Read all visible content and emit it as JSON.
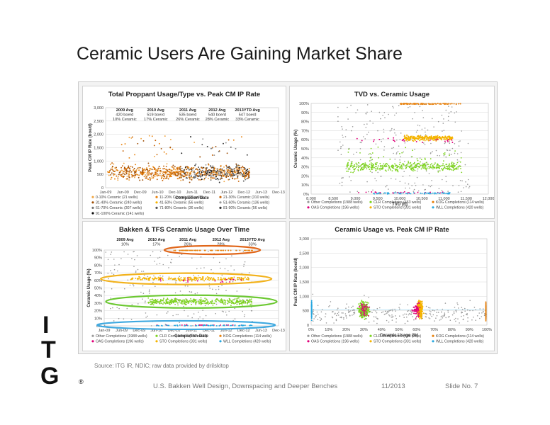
{
  "slide": {
    "title": "Ceramic Users Are Gaining Market Share",
    "source": "Source:  ITG IR, NDIC; raw data provided by drilskitop",
    "footer": "U.S. Bakken Well Design, Downspacing and Deeper Benches",
    "date": "11/2013",
    "slide_no": "Slide No. 7",
    "logo_letters": [
      "I",
      "T",
      "G"
    ],
    "logo_mark": "®"
  },
  "colors": {
    "orange": "#e8820e",
    "amber": "#f5b400",
    "green": "#7ed321",
    "magenta": "#e0007a",
    "cyan": "#29a8e0",
    "gray": "#9a9a9a",
    "dark_gray": "#555555",
    "black": "#111111",
    "ring_orange": "#e0661a",
    "ring_amber": "#f2b21c",
    "ring_green": "#6cc832",
    "ring_blue": "#3fa9e0"
  },
  "chart_data": [
    {
      "type": "scatter",
      "title": "Total Proppant Usage/Type  vs. Peak CM IP Rate",
      "xlabel": "Completion Date",
      "ylabel": "Peak CM IP Rate (boe/d)",
      "x_ticks": [
        "Jan-09",
        "Jun-09",
        "Dec-09",
        "Jun-10",
        "Dec-10",
        "Jun-11",
        "Dec-11",
        "Jun-12",
        "Dec-12",
        "Jun-13",
        "Dec-13"
      ],
      "y_ticks": [
        "0",
        "500",
        "1,000",
        "1,500",
        "2,000",
        "2,500",
        "3,000"
      ],
      "ylim": [
        0,
        3000
      ],
      "grid": true,
      "annotations": [
        {
          "year": "2009 Avg",
          "rate": "420 boe/d",
          "share": "10% Ceramic"
        },
        {
          "year": "2010 Avg",
          "rate": "519 boe/d",
          "share": "17% Ceramic"
        },
        {
          "year": "2011 Avg",
          "rate": "535 boe/d",
          "share": "26% Ceramic"
        },
        {
          "year": "2012 Avg",
          "rate": "540 boe/d",
          "share": "28% Ceramic"
        },
        {
          "year": "2013YTD Avg",
          "rate": "547 boe/d",
          "share": "33% Ceramic"
        }
      ],
      "legend": [
        {
          "label": "0-10% Ceramic (21 wells)",
          "color": "#f0a848"
        },
        {
          "label": "11-20% Ceramic (69 wells)",
          "color": "#e8820e"
        },
        {
          "label": "21-30% Ceramic (310 wells)",
          "color": "#c8640a"
        },
        {
          "label": "31-40% Ceramic (240 wells)",
          "color": "#a05008"
        },
        {
          "label": "41-50% Ceramic (56 wells)",
          "color": "#f5b400"
        },
        {
          "label": "51-60% Ceramic (136 wells)",
          "color": "#9a9a9a"
        },
        {
          "label": "61-70% Ceramic (307 wells)",
          "color": "#777777"
        },
        {
          "label": "71-80% Ceramic (36 wells)",
          "color": "#555555"
        },
        {
          "label": "81-90% Ceramic (56 wells)",
          "color": "#333333"
        },
        {
          "label": "91-100% Ceramic (141 wells)",
          "color": "#111111"
        }
      ],
      "legend_position": "bottom"
    },
    {
      "type": "scatter",
      "title": "TVD vs. Ceramic Usage",
      "xlabel": "TVD (ft)",
      "ylabel": "Ceramic Usage (%)",
      "x_ticks": [
        "8,000",
        "8,500",
        "9,000",
        "9,500",
        "10,000",
        "10,500",
        "11,000",
        "11,500",
        "12,000"
      ],
      "y_ticks": [
        "0%",
        "10%",
        "20%",
        "30%",
        "40%",
        "50%",
        "60%",
        "70%",
        "80%",
        "90%",
        "100%"
      ],
      "xlim": [
        8000,
        12000
      ],
      "ylim": [
        0,
        100
      ],
      "grid": true,
      "legend": [
        {
          "label": "Other Completions (1988 wells)",
          "color": "#9a9a9a"
        },
        {
          "label": "CLR Completions (463 wells)",
          "color": "#7ed321"
        },
        {
          "label": "KOG Completions (114 wells)",
          "color": "#e8820e"
        },
        {
          "label": "OAS Completions (196 wells)",
          "color": "#e0007a"
        },
        {
          "label": "STO Completions (331 wells)",
          "color": "#f5b400"
        },
        {
          "label": "WLL Completions (420 wells)",
          "color": "#29a8e0"
        }
      ],
      "legend_position": "bottom"
    },
    {
      "type": "scatter",
      "title": "Bakken & TFS Ceramic Usage Over Time",
      "xlabel": "Completion Date",
      "ylabel": "Ceramic Usage (%)",
      "x_ticks": [
        "Jan-09",
        "Jun-09",
        "Dec-09",
        "Jun-10",
        "Dec-10",
        "Jun-11",
        "Dec-11",
        "Jun-12",
        "Dec-12",
        "Jun-13",
        "Dec-13"
      ],
      "y_ticks": [
        "0%",
        "10%",
        "20%",
        "30%",
        "40%",
        "50%",
        "60%",
        "70%",
        "80%",
        "90%",
        "100%"
      ],
      "ylim": [
        0,
        100
      ],
      "grid": true,
      "annotations": [
        {
          "year": "2009 Avg",
          "share": "10%"
        },
        {
          "year": "2010 Avg",
          "share": "17%"
        },
        {
          "year": "2011 Avg",
          "share": "26%"
        },
        {
          "year": "2012 Avg",
          "share": "28%"
        },
        {
          "year": "2013YTD Avg",
          "share": "33%"
        }
      ],
      "bands": [
        {
          "level": 100,
          "color": "#e0661a"
        },
        {
          "level": 62,
          "color": "#f2b21c"
        },
        {
          "level": 32,
          "color": "#6cc832"
        },
        {
          "level": 1,
          "color": "#3fa9e0"
        }
      ],
      "legend": [
        {
          "label": "Other Completions (1988 wells)",
          "color": "#9a9a9a"
        },
        {
          "label": "CLR Completions (463 wells)",
          "color": "#7ed321"
        },
        {
          "label": "KOG Completions (114 wells)",
          "color": "#e8820e"
        },
        {
          "label": "OAS Completions (196 wells)",
          "color": "#e0007a"
        },
        {
          "label": "STO Completions (331 wells)",
          "color": "#f5b400"
        },
        {
          "label": "WLL Completions (420 wells)",
          "color": "#29a8e0"
        }
      ],
      "legend_position": "bottom"
    },
    {
      "type": "scatter",
      "title": "Ceramic Usage vs. Peak CM IP Rate",
      "xlabel": "Ceramic Usage (%)",
      "ylabel": "Peak CM IP Rate (boe/d)",
      "x_ticks": [
        "0%",
        "10%",
        "20%",
        "30%",
        "40%",
        "50%",
        "60%",
        "70%",
        "80%",
        "90%",
        "100%"
      ],
      "y_ticks": [
        "0",
        "500",
        "1,000",
        "1,500",
        "2,000",
        "2,500",
        "3,000"
      ],
      "xlim": [
        0,
        100
      ],
      "ylim": [
        0,
        3000
      ],
      "grid": true,
      "legend": [
        {
          "label": "Other Completions (1988 wells)",
          "color": "#9a9a9a"
        },
        {
          "label": "CLR Completions (463 wells)",
          "color": "#7ed321"
        },
        {
          "label": "KOG Completions (114 wells)",
          "color": "#e8820e"
        },
        {
          "label": "OAS Completions (196 wells)",
          "color": "#e0007a"
        },
        {
          "label": "STO Completions (331 wells)",
          "color": "#f5b400"
        },
        {
          "label": "WLL Completions (420 wells)",
          "color": "#29a8e0"
        }
      ],
      "legend_position": "bottom"
    }
  ]
}
